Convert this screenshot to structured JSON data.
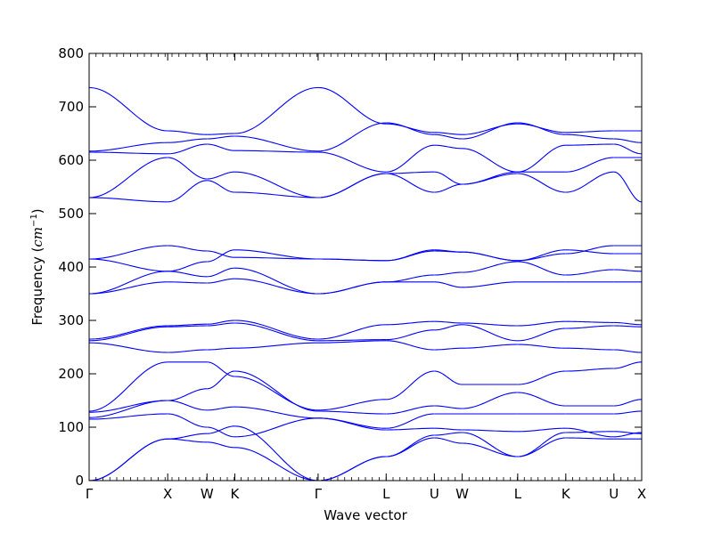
{
  "chart_data": {
    "type": "line",
    "title": "",
    "xlabel": "Wave vector",
    "ylabel_prefix": "Frequency (",
    "ylabel_unit": "cm",
    "ylabel_exp": "−1",
    "ylabel_suffix": ")",
    "ylim": [
      0,
      800
    ],
    "yticks": [
      0,
      100,
      200,
      300,
      400,
      500,
      600,
      700,
      800
    ],
    "line_color": "#0000ff",
    "grid": false,
    "high_symmetry_points": [
      {
        "label": "Γ",
        "pos": 0.0
      },
      {
        "label": "X",
        "pos": 1.0
      },
      {
        "label": "W",
        "pos": 1.5
      },
      {
        "label": "K",
        "pos": 1.854
      },
      {
        "label": "Γ",
        "pos": 2.914
      },
      {
        "label": "L",
        "pos": 3.78
      },
      {
        "label": "U",
        "pos": 4.393
      },
      {
        "label": "W",
        "pos": 4.747
      },
      {
        "label": "L",
        "pos": 5.454
      },
      {
        "label": "K",
        "pos": 6.066
      },
      {
        "label": "U",
        "pos": 6.678
      },
      {
        "label": "X",
        "pos": 7.032
      }
    ],
    "xlim": [
      0,
      7.032
    ],
    "segments": [
      {
        "from": 0.0,
        "to": 1.0,
        "bands": [
          [
            0,
            78
          ],
          [
            0,
            78
          ],
          [
            115,
            125
          ],
          [
            118,
            150
          ],
          [
            128,
            150
          ],
          [
            130,
            222
          ],
          [
            258,
            240
          ],
          [
            262,
            288
          ],
          [
            265,
            290
          ],
          [
            350,
            372
          ],
          [
            350,
            392
          ],
          [
            415,
            392
          ],
          [
            415,
            440
          ],
          [
            530,
            522
          ],
          [
            530,
            605
          ],
          [
            615,
            612
          ],
          [
            617,
            633
          ],
          [
            736,
            655
          ]
        ]
      },
      {
        "from": 1.0,
        "to": 1.5,
        "bands": [
          [
            78,
            72
          ],
          [
            78,
            88
          ],
          [
            125,
            100
          ],
          [
            150,
            132
          ],
          [
            150,
            172
          ],
          [
            222,
            222
          ],
          [
            240,
            245
          ],
          [
            288,
            290
          ],
          [
            290,
            293
          ],
          [
            372,
            370
          ],
          [
            392,
            382
          ],
          [
            392,
            410
          ],
          [
            440,
            430
          ],
          [
            522,
            562
          ],
          [
            605,
            565
          ],
          [
            612,
            630
          ],
          [
            633,
            640
          ],
          [
            655,
            648
          ]
        ]
      },
      {
        "from": 1.5,
        "to": 1.854,
        "bands": [
          [
            72,
            62
          ],
          [
            88,
            102
          ],
          [
            100,
            82
          ],
          [
            132,
            138
          ],
          [
            172,
            205
          ],
          [
            222,
            195
          ],
          [
            245,
            248
          ],
          [
            290,
            295
          ],
          [
            293,
            300
          ],
          [
            370,
            378
          ],
          [
            382,
            398
          ],
          [
            410,
            432
          ],
          [
            430,
            418
          ],
          [
            562,
            540
          ],
          [
            565,
            578
          ],
          [
            630,
            618
          ],
          [
            640,
            645
          ],
          [
            648,
            650
          ]
        ]
      },
      {
        "from": 1.854,
        "to": 2.914,
        "bands": [
          [
            62,
            0
          ],
          [
            102,
            0
          ],
          [
            82,
            117
          ],
          [
            138,
            117
          ],
          [
            205,
            130
          ],
          [
            195,
            132
          ],
          [
            248,
            258
          ],
          [
            295,
            262
          ],
          [
            300,
            265
          ],
          [
            378,
            350
          ],
          [
            398,
            350
          ],
          [
            432,
            415
          ],
          [
            418,
            415
          ],
          [
            540,
            530
          ],
          [
            578,
            530
          ],
          [
            618,
            615
          ],
          [
            645,
            617
          ],
          [
            650,
            736
          ]
        ]
      },
      {
        "from": 2.914,
        "to": 3.78,
        "bands": [
          [
            0,
            45
          ],
          [
            0,
            45
          ],
          [
            117,
            95
          ],
          [
            117,
            98
          ],
          [
            130,
            125
          ],
          [
            132,
            152
          ],
          [
            258,
            262
          ],
          [
            262,
            264
          ],
          [
            265,
            292
          ],
          [
            350,
            372
          ],
          [
            350,
            372
          ],
          [
            415,
            412
          ],
          [
            415,
            412
          ],
          [
            530,
            575
          ],
          [
            530,
            575
          ],
          [
            615,
            578
          ],
          [
            617,
            670
          ],
          [
            736,
            668
          ]
        ]
      },
      {
        "from": 3.78,
        "to": 4.393,
        "bands": [
          [
            45,
            80
          ],
          [
            45,
            85
          ],
          [
            95,
            98
          ],
          [
            98,
            125
          ],
          [
            125,
            140
          ],
          [
            152,
            205
          ],
          [
            262,
            245
          ],
          [
            264,
            282
          ],
          [
            292,
            298
          ],
          [
            372,
            372
          ],
          [
            372,
            385
          ],
          [
            412,
            430
          ],
          [
            412,
            432
          ],
          [
            575,
            540
          ],
          [
            575,
            578
          ],
          [
            578,
            628
          ],
          [
            670,
            648
          ],
          [
            668,
            652
          ]
        ]
      },
      {
        "from": 4.393,
        "to": 4.747,
        "bands": [
          [
            80,
            70
          ],
          [
            85,
            90
          ],
          [
            98,
            95
          ],
          [
            125,
            125
          ],
          [
            140,
            135
          ],
          [
            205,
            180
          ],
          [
            245,
            248
          ],
          [
            282,
            292
          ],
          [
            298,
            295
          ],
          [
            372,
            362
          ],
          [
            385,
            390
          ],
          [
            430,
            428
          ],
          [
            432,
            428
          ],
          [
            540,
            555
          ],
          [
            578,
            555
          ],
          [
            628,
            622
          ],
          [
            648,
            640
          ],
          [
            652,
            648
          ]
        ]
      },
      {
        "from": 4.747,
        "to": 5.454,
        "bands": [
          [
            70,
            45
          ],
          [
            90,
            45
          ],
          [
            95,
            92
          ],
          [
            125,
            125
          ],
          [
            135,
            165
          ],
          [
            180,
            180
          ],
          [
            248,
            255
          ],
          [
            292,
            262
          ],
          [
            295,
            290
          ],
          [
            362,
            372
          ],
          [
            390,
            410
          ],
          [
            428,
            412
          ],
          [
            428,
            412
          ],
          [
            555,
            575
          ],
          [
            555,
            578
          ],
          [
            622,
            578
          ],
          [
            640,
            670
          ],
          [
            648,
            668
          ]
        ]
      },
      {
        "from": 5.454,
        "to": 6.066,
        "bands": [
          [
            45,
            80
          ],
          [
            45,
            90
          ],
          [
            92,
            98
          ],
          [
            125,
            125
          ],
          [
            165,
            140
          ],
          [
            180,
            205
          ],
          [
            255,
            248
          ],
          [
            262,
            285
          ],
          [
            290,
            298
          ],
          [
            372,
            372
          ],
          [
            410,
            385
          ],
          [
            412,
            432
          ],
          [
            412,
            425
          ],
          [
            575,
            540
          ],
          [
            578,
            578
          ],
          [
            578,
            628
          ],
          [
            670,
            648
          ],
          [
            668,
            652
          ]
        ]
      },
      {
        "from": 6.066,
        "to": 6.678,
        "bands": [
          [
            80,
            78
          ],
          [
            90,
            92
          ],
          [
            98,
            82
          ],
          [
            125,
            125
          ],
          [
            140,
            140
          ],
          [
            205,
            210
          ],
          [
            248,
            245
          ],
          [
            285,
            290
          ],
          [
            298,
            296
          ],
          [
            372,
            372
          ],
          [
            385,
            395
          ],
          [
            432,
            425
          ],
          [
            425,
            440
          ],
          [
            540,
            578
          ],
          [
            578,
            605
          ],
          [
            628,
            630
          ],
          [
            648,
            640
          ],
          [
            652,
            655
          ]
        ]
      },
      {
        "from": 6.678,
        "to": 7.032,
        "bands": [
          [
            78,
            78
          ],
          [
            92,
            88
          ],
          [
            82,
            90
          ],
          [
            125,
            130
          ],
          [
            140,
            152
          ],
          [
            210,
            222
          ],
          [
            245,
            240
          ],
          [
            290,
            288
          ],
          [
            296,
            292
          ],
          [
            372,
            372
          ],
          [
            395,
            392
          ],
          [
            425,
            425
          ],
          [
            440,
            440
          ],
          [
            578,
            522
          ],
          [
            605,
            605
          ],
          [
            630,
            612
          ],
          [
            640,
            633
          ],
          [
            655,
            655
          ]
        ]
      }
    ]
  }
}
